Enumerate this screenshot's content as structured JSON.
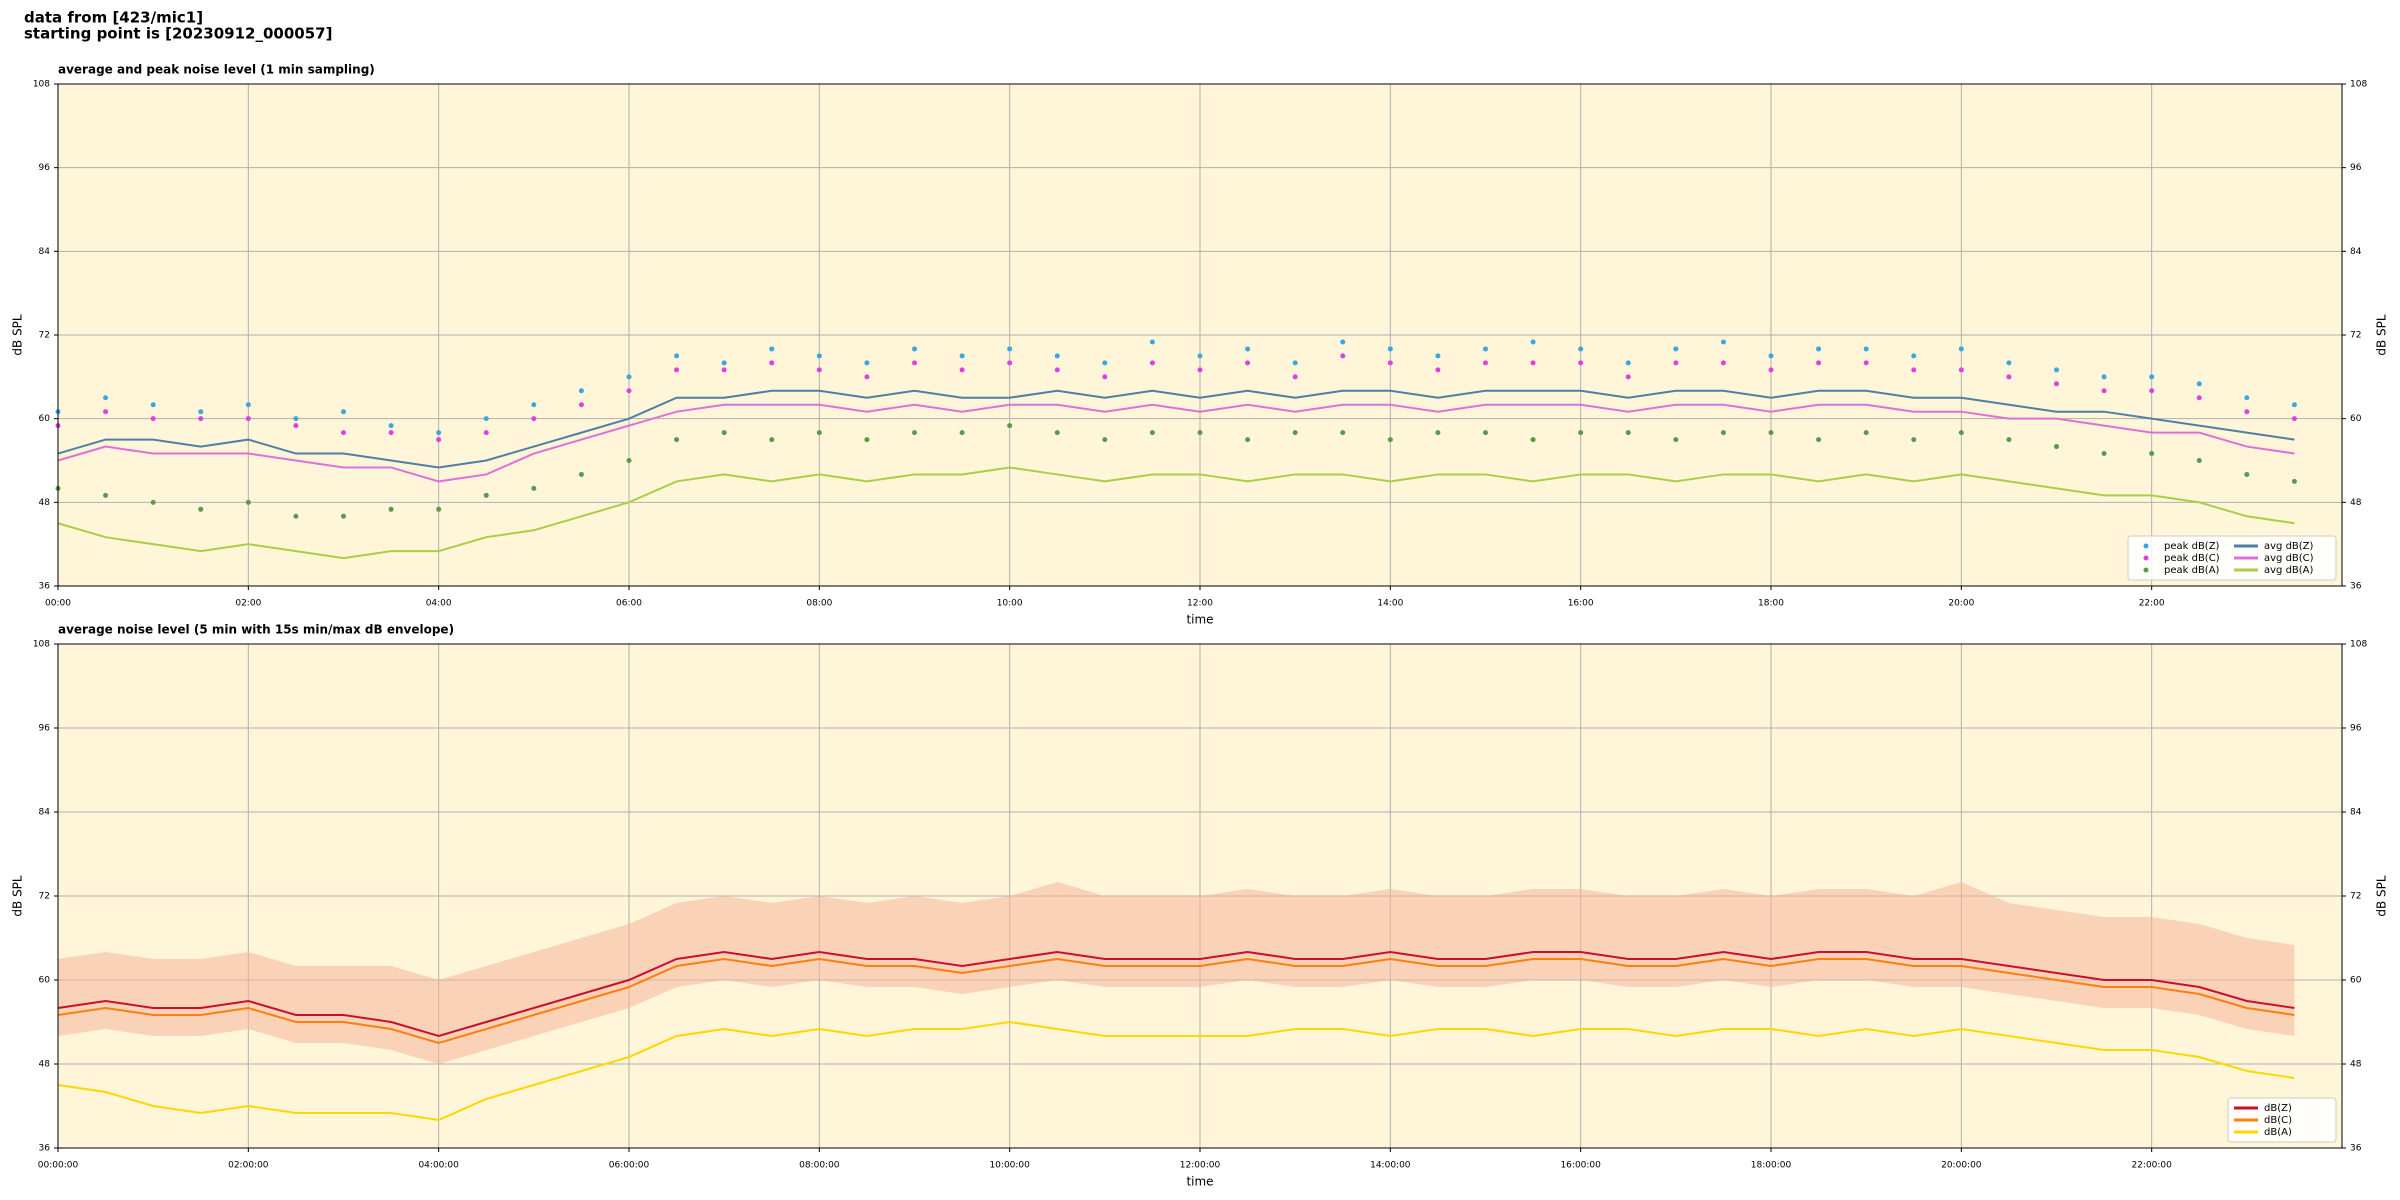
{
  "header": [
    "data from [423/mic1]",
    "starting point is [20230912_000057]"
  ],
  "chart_data": [
    {
      "type": "line",
      "title": "average and peak noise level (1 min sampling)",
      "xlabel": "time",
      "ylabel": "dB SPL",
      "background": "#fff5d9",
      "grid": true,
      "legend": "lower right",
      "legend_columns": 2,
      "xlim": [
        0,
        24
      ],
      "ylim": [
        36,
        108
      ],
      "yticks": [
        36,
        48,
        60,
        72,
        84,
        96,
        108
      ],
      "xticks": [
        {
          "value": 0,
          "label": "00:00"
        },
        {
          "value": 2,
          "label": "02:00"
        },
        {
          "value": 4,
          "label": "04:00"
        },
        {
          "value": 6,
          "label": "06:00"
        },
        {
          "value": 8,
          "label": "08:00"
        },
        {
          "value": 10,
          "label": "10:00"
        },
        {
          "value": 12,
          "label": "12:00"
        },
        {
          "value": 14,
          "label": "14:00"
        },
        {
          "value": 16,
          "label": "16:00"
        },
        {
          "value": 18,
          "label": "18:00"
        },
        {
          "value": 20,
          "label": "20:00"
        },
        {
          "value": 22,
          "label": "22:00"
        }
      ],
      "x": [
        0,
        0.5,
        1,
        1.5,
        2,
        2.5,
        3,
        3.5,
        4,
        4.5,
        5,
        5.5,
        6,
        6.5,
        7,
        7.5,
        8,
        8.5,
        9,
        9.5,
        10,
        10.5,
        11,
        11.5,
        12,
        12.5,
        13,
        13.5,
        14,
        14.5,
        15,
        15.5,
        16,
        16.5,
        17,
        17.5,
        18,
        18.5,
        19,
        19.5,
        20,
        20.5,
        21,
        21.5,
        22,
        22.5,
        23,
        23.5
      ],
      "series": [
        {
          "name": "peak dB(Z)",
          "style": "dots",
          "color": "#3ba7e0",
          "values": [
            61,
            63,
            62,
            61,
            62,
            60,
            61,
            59,
            58,
            60,
            62,
            64,
            66,
            69,
            68,
            70,
            69,
            68,
            70,
            69,
            70,
            69,
            68,
            71,
            69,
            70,
            68,
            71,
            70,
            69,
            70,
            71,
            70,
            68,
            70,
            71,
            69,
            70,
            70,
            69,
            70,
            68,
            67,
            66,
            66,
            65,
            63,
            62
          ]
        },
        {
          "name": "peak dB(C)",
          "style": "dots",
          "color": "#e040e0",
          "values": [
            59,
            61,
            60,
            60,
            60,
            59,
            58,
            58,
            57,
            58,
            60,
            62,
            64,
            67,
            67,
            68,
            67,
            66,
            68,
            67,
            68,
            67,
            66,
            68,
            67,
            68,
            66,
            69,
            68,
            67,
            68,
            68,
            68,
            66,
            68,
            68,
            67,
            68,
            68,
            67,
            67,
            66,
            65,
            64,
            64,
            63,
            61,
            60
          ]
        },
        {
          "name": "peak dB(A)",
          "style": "dots",
          "color": "#5a9a4a",
          "values": [
            50,
            49,
            48,
            47,
            48,
            46,
            46,
            47,
            47,
            49,
            50,
            52,
            54,
            57,
            58,
            57,
            58,
            57,
            58,
            58,
            59,
            58,
            57,
            58,
            58,
            57,
            58,
            58,
            57,
            58,
            58,
            57,
            58,
            58,
            57,
            58,
            58,
            57,
            58,
            57,
            58,
            57,
            56,
            55,
            55,
            54,
            52,
            51
          ]
        },
        {
          "name": "avg dB(Z)",
          "style": "line",
          "color": "#4f7fa6",
          "values": [
            55,
            57,
            57,
            56,
            57,
            55,
            55,
            54,
            53,
            54,
            56,
            58,
            60,
            63,
            63,
            64,
            64,
            63,
            64,
            63,
            63,
            64,
            63,
            64,
            63,
            64,
            63,
            64,
            64,
            63,
            64,
            64,
            64,
            63,
            64,
            64,
            63,
            64,
            64,
            63,
            63,
            62,
            61,
            61,
            60,
            59,
            58,
            57
          ]
        },
        {
          "name": "avg dB(C)",
          "style": "line",
          "color": "#e070d8",
          "values": [
            54,
            56,
            55,
            55,
            55,
            54,
            53,
            53,
            51,
            52,
            55,
            57,
            59,
            61,
            62,
            62,
            62,
            61,
            62,
            61,
            62,
            62,
            61,
            62,
            61,
            62,
            61,
            62,
            62,
            61,
            62,
            62,
            62,
            61,
            62,
            62,
            61,
            62,
            62,
            61,
            61,
            60,
            60,
            59,
            58,
            58,
            56,
            55
          ]
        },
        {
          "name": "avg dB(A)",
          "style": "line",
          "color": "#a8cf45",
          "values": [
            45,
            43,
            42,
            41,
            42,
            41,
            40,
            41,
            41,
            43,
            44,
            46,
            48,
            51,
            52,
            51,
            52,
            51,
            52,
            52,
            53,
            52,
            51,
            52,
            52,
            51,
            52,
            52,
            51,
            52,
            52,
            51,
            52,
            52,
            51,
            52,
            52,
            51,
            52,
            51,
            52,
            51,
            50,
            49,
            49,
            48,
            46,
            45
          ]
        }
      ]
    },
    {
      "type": "line",
      "title": "average noise level (5 min with 15s min/max dB envelope)",
      "xlabel": "time",
      "ylabel": "dB SPL",
      "background": "#fff5d9",
      "grid": true,
      "legend": "lower right",
      "legend_columns": 1,
      "xlim": [
        0,
        24
      ],
      "ylim": [
        36,
        108
      ],
      "yticks": [
        36,
        48,
        60,
        72,
        84,
        96,
        108
      ],
      "xticks": [
        {
          "value": 0,
          "label": "00:00:00"
        },
        {
          "value": 2,
          "label": "02:00:00"
        },
        {
          "value": 4,
          "label": "04:00:00"
        },
        {
          "value": 6,
          "label": "06:00:00"
        },
        {
          "value": 8,
          "label": "08:00:00"
        },
        {
          "value": 10,
          "label": "10:00:00"
        },
        {
          "value": 12,
          "label": "12:00:00"
        },
        {
          "value": 14,
          "label": "14:00:00"
        },
        {
          "value": 16,
          "label": "16:00:00"
        },
        {
          "value": 18,
          "label": "18:00:00"
        },
        {
          "value": 20,
          "label": "20:00:00"
        },
        {
          "value": 22,
          "label": "22:00:00"
        }
      ],
      "x": [
        0,
        0.5,
        1,
        1.5,
        2,
        2.5,
        3,
        3.5,
        4,
        4.5,
        5,
        5.5,
        6,
        6.5,
        7,
        7.5,
        8,
        8.5,
        9,
        9.5,
        10,
        10.5,
        11,
        11.5,
        12,
        12.5,
        13,
        13.5,
        14,
        14.5,
        15,
        15.5,
        16,
        16.5,
        17,
        17.5,
        18,
        18.5,
        19,
        19.5,
        20,
        20.5,
        21,
        21.5,
        22,
        22.5,
        23,
        23.5
      ],
      "envelope": {
        "color": "#f4b49c",
        "min": [
          52,
          53,
          52,
          52,
          53,
          51,
          51,
          50,
          48,
          50,
          52,
          54,
          56,
          59,
          60,
          59,
          60,
          59,
          59,
          58,
          59,
          60,
          59,
          59,
          59,
          60,
          59,
          59,
          60,
          59,
          59,
          60,
          60,
          59,
          59,
          60,
          59,
          60,
          60,
          59,
          59,
          58,
          57,
          56,
          56,
          55,
          53,
          52
        ],
        "max": [
          63,
          64,
          63,
          63,
          64,
          62,
          62,
          62,
          60,
          62,
          64,
          66,
          68,
          71,
          72,
          71,
          72,
          71,
          72,
          71,
          72,
          74,
          72,
          72,
          72,
          73,
          72,
          72,
          73,
          72,
          72,
          73,
          73,
          72,
          72,
          73,
          72,
          73,
          73,
          72,
          74,
          71,
          70,
          69,
          69,
          68,
          66,
          65
        ]
      },
      "series": [
        {
          "name": "dB(Z)",
          "style": "line",
          "color": "#c8102e",
          "values": [
            56,
            57,
            56,
            56,
            57,
            55,
            55,
            54,
            52,
            54,
            56,
            58,
            60,
            63,
            64,
            63,
            64,
            63,
            63,
            62,
            63,
            64,
            63,
            63,
            63,
            64,
            63,
            63,
            64,
            63,
            63,
            64,
            64,
            63,
            63,
            64,
            63,
            64,
            64,
            63,
            63,
            62,
            61,
            60,
            60,
            59,
            57,
            56
          ]
        },
        {
          "name": "dB(C)",
          "style": "line",
          "color": "#ff7f0e",
          "values": [
            55,
            56,
            55,
            55,
            56,
            54,
            54,
            53,
            51,
            53,
            55,
            57,
            59,
            62,
            63,
            62,
            63,
            62,
            62,
            61,
            62,
            63,
            62,
            62,
            62,
            63,
            62,
            62,
            63,
            62,
            62,
            63,
            63,
            62,
            62,
            63,
            62,
            63,
            63,
            62,
            62,
            61,
            60,
            59,
            59,
            58,
            56,
            55
          ]
        },
        {
          "name": "dB(A)",
          "style": "line",
          "color": "#ffd700",
          "values": [
            45,
            44,
            42,
            41,
            42,
            41,
            41,
            41,
            40,
            43,
            45,
            47,
            49,
            52,
            53,
            52,
            53,
            52,
            53,
            53,
            54,
            53,
            52,
            52,
            52,
            52,
            53,
            53,
            52,
            53,
            53,
            52,
            53,
            53,
            52,
            53,
            53,
            52,
            53,
            52,
            53,
            52,
            51,
            50,
            50,
            49,
            47,
            46
          ]
        }
      ]
    }
  ]
}
